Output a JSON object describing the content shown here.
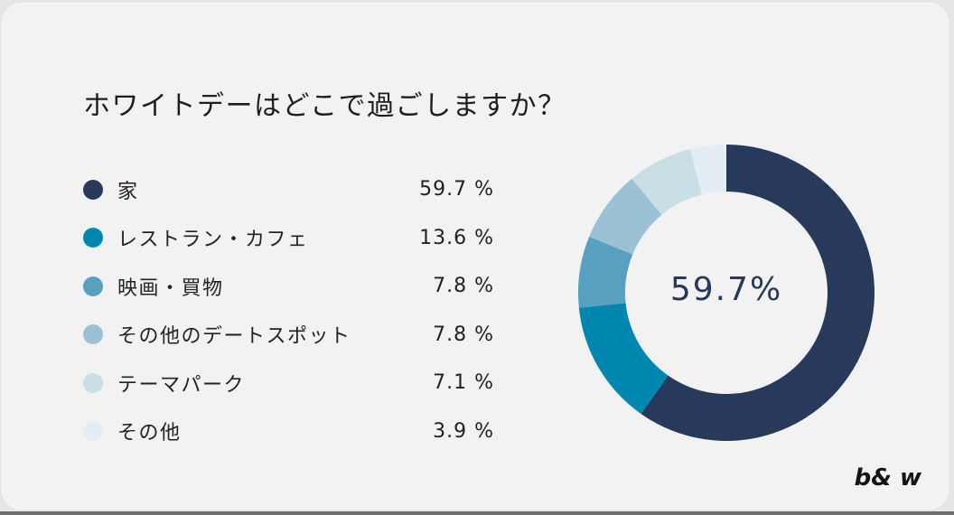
{
  "title": "ホワイトデーはどこで過ごしますか？",
  "legend": [
    {
      "label": "家",
      "value": "59.7 %",
      "color": "#273a5b"
    },
    {
      "label": "レストラン・カフェ",
      "value": "13.6 %",
      "color": "#0087b0"
    },
    {
      "label": "映画・買物",
      "value": "7.8 %",
      "color": "#58a0c0"
    },
    {
      "label": "その他のデートスポット",
      "value": "7.8 %",
      "color": "#9bc1d5"
    },
    {
      "label": "テーマパーク",
      "value": "7.1 %",
      "color": "#c9dfe6"
    },
    {
      "label": "その他",
      "value": "3.9 %",
      "color": "#e4edf3"
    }
  ],
  "center_label": "59.7%",
  "brand": "b& w",
  "chart_data": {
    "type": "pie",
    "subtype": "donut",
    "title": "ホワイトデーはどこで過ごしますか？",
    "categories": [
      "家",
      "レストラン・カフェ",
      "映画・買物",
      "その他のデートスポット",
      "テーマパーク",
      "その他"
    ],
    "values": [
      59.7,
      13.6,
      7.8,
      7.8,
      7.1,
      3.9
    ],
    "unit": "%",
    "colors": [
      "#273a5b",
      "#0087b0",
      "#58a0c0",
      "#9bc1d5",
      "#c9dfe6",
      "#e4edf3"
    ],
    "center_annotation": "59.7%",
    "legend_position": "left",
    "start_angle": "12 o'clock, clockwise"
  }
}
